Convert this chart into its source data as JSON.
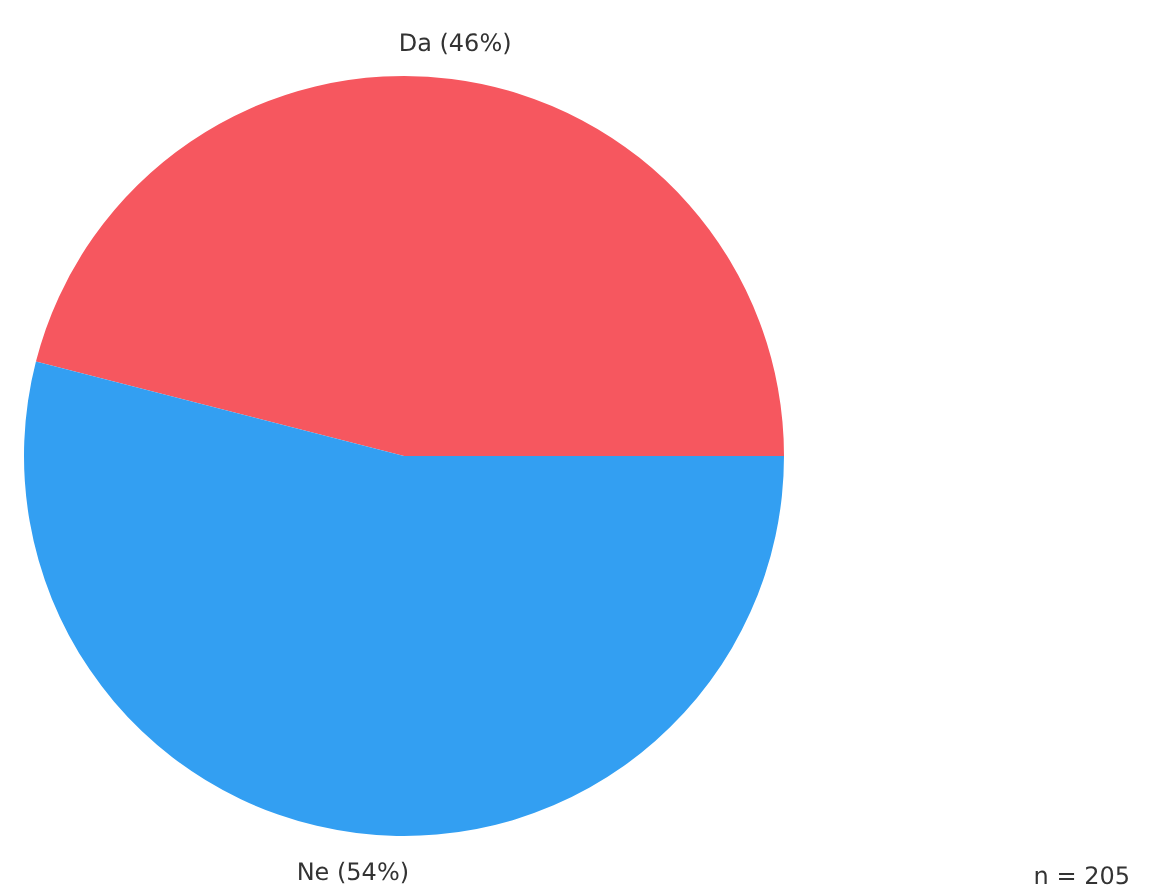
{
  "chart_data": {
    "type": "pie",
    "categories": [
      "Da",
      "Ne"
    ],
    "values": [
      46,
      54
    ],
    "colors": [
      "#f6575f",
      "#339ff2"
    ],
    "value_labels": [
      "(46%)",
      "(54%)"
    ],
    "annotations": [
      "n = 205"
    ]
  }
}
